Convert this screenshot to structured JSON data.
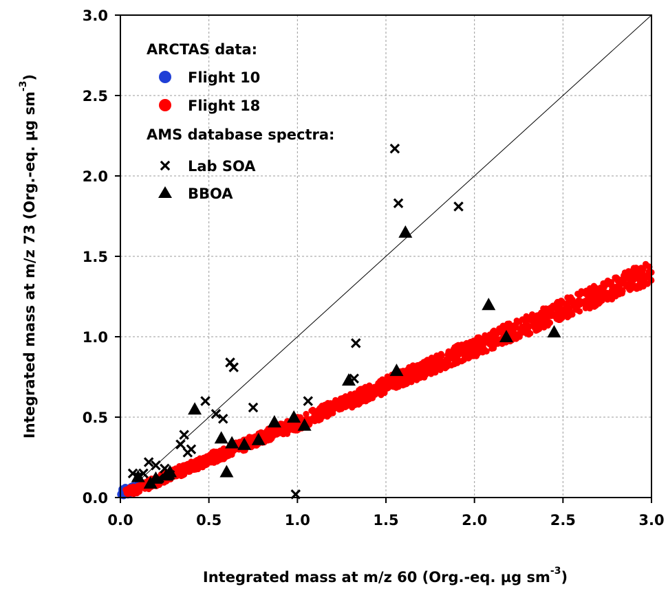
{
  "chart_data": {
    "type": "scatter",
    "xlabel": "Integrated mass at m/z 60 (Org.-eq. µg sm",
    "xlabel_sup": "-3",
    "xlabel_tail": ")",
    "ylabel": "Integrated mass at m/z 73 (Org.-eq. µg sm",
    "ylabel_sup": "-3",
    "ylabel_tail": ")",
    "xlim": [
      0,
      3.0
    ],
    "ylim": [
      0,
      3.0
    ],
    "x_ticks": [
      0.0,
      0.5,
      1.0,
      1.5,
      2.0,
      2.5,
      3.0
    ],
    "x_tick_labels": [
      "0.0",
      "0.5",
      "1.0",
      "1.5",
      "2.0",
      "2.5",
      "3.0"
    ],
    "y_ticks": [
      0.0,
      0.5,
      1.0,
      1.5,
      2.0,
      2.5,
      3.0
    ],
    "y_tick_labels": [
      "0.0",
      "0.5",
      "1.0",
      "1.5",
      "2.0",
      "2.5",
      "3.0"
    ],
    "grid": true,
    "one_to_one_line": true,
    "legend": {
      "placement": "top-left",
      "groups": [
        {
          "heading": "ARCTAS data:",
          "entries": [
            "Flight 10",
            "Flight 18"
          ]
        },
        {
          "heading": "AMS database spectra:",
          "entries": [
            "Lab SOA",
            "BBOA"
          ]
        }
      ]
    },
    "series": [
      {
        "name": "Flight 10",
        "marker": "circle",
        "color": "#1f3fd6",
        "x": [
          0.005,
          0.01,
          0.015,
          0.02,
          0.025,
          0.03,
          0.035,
          0.04,
          0.045,
          0.05,
          0.055,
          0.06,
          0.065,
          0.07,
          0.075,
          0.08,
          0.085,
          0.09,
          0.1,
          0.11,
          0.012,
          0.028,
          0.042,
          0.058,
          0.072,
          0.088,
          0.018,
          0.038,
          0.062,
          0.095
        ],
        "y": [
          0.02,
          0.03,
          0.02,
          0.035,
          0.025,
          0.04,
          0.03,
          0.045,
          0.035,
          0.05,
          0.04,
          0.045,
          0.05,
          0.055,
          0.05,
          0.06,
          0.055,
          0.065,
          0.07,
          0.08,
          0.05,
          0.06,
          0.02,
          0.03,
          0.07,
          0.04,
          0.015,
          0.025,
          0.065,
          0.075
        ]
      },
      {
        "name": "Flight 18",
        "marker": "circle",
        "color": "#ff0000",
        "x": [
          0.1,
          0.2,
          0.3,
          0.4,
          0.5,
          0.6,
          0.7,
          0.8,
          0.9,
          1.0,
          1.1,
          1.2,
          1.3,
          1.4,
          1.5,
          1.6,
          1.7,
          1.8,
          1.9,
          2.0,
          2.1,
          2.2,
          2.3,
          2.4,
          2.5,
          2.6,
          2.7,
          2.8,
          2.9,
          3.0
        ],
        "y": [
          0.05,
          0.1,
          0.15,
          0.19,
          0.24,
          0.28,
          0.33,
          0.37,
          0.42,
          0.46,
          0.51,
          0.56,
          0.6,
          0.65,
          0.7,
          0.75,
          0.79,
          0.84,
          0.89,
          0.93,
          0.98,
          1.03,
          1.07,
          1.12,
          1.17,
          1.22,
          1.26,
          1.31,
          1.36,
          1.4
        ],
        "band": {
          "y_minus": 0.06,
          "y_plus": 0.07
        }
      },
      {
        "name": "Lab SOA",
        "marker": "x",
        "color": "#000000",
        "x": [
          0.07,
          0.1,
          0.13,
          0.16,
          0.2,
          0.22,
          0.25,
          0.28,
          0.34,
          0.38,
          0.36,
          0.4,
          0.48,
          0.54,
          0.58,
          0.62,
          0.64,
          0.75,
          0.99,
          1.06,
          1.33,
          1.32,
          1.55,
          1.57,
          1.91
        ],
        "y": [
          0.15,
          0.13,
          0.15,
          0.22,
          0.2,
          0.12,
          0.18,
          0.14,
          0.33,
          0.28,
          0.39,
          0.3,
          0.6,
          0.52,
          0.49,
          0.84,
          0.81,
          0.56,
          0.02,
          0.6,
          0.96,
          0.74,
          2.17,
          1.83,
          1.81
        ]
      },
      {
        "name": "BBOA",
        "marker": "triangle",
        "color": "#000000",
        "x": [
          0.1,
          0.17,
          0.2,
          0.26,
          0.28,
          0.42,
          0.57,
          0.6,
          0.63,
          0.7,
          0.78,
          0.87,
          0.98,
          1.04,
          1.29,
          1.56,
          1.61,
          2.08,
          2.18,
          2.45
        ],
        "y": [
          0.13,
          0.09,
          0.12,
          0.14,
          0.16,
          0.55,
          0.37,
          0.16,
          0.34,
          0.33,
          0.36,
          0.47,
          0.5,
          0.45,
          0.73,
          0.79,
          1.65,
          1.2,
          1.0,
          1.03
        ]
      }
    ]
  }
}
